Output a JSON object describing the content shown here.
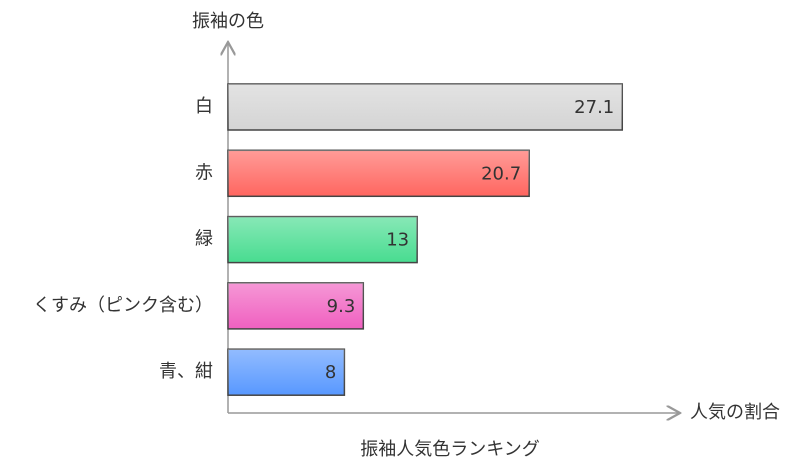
{
  "chart_data": {
    "type": "hbar",
    "title": "振袖人気色ランキング",
    "y_label": "振袖の色",
    "x_label": "人気の割合",
    "categories": [
      "白",
      "赤",
      "緑",
      "くすみ（ピンク含む）",
      "青、紺"
    ],
    "values": [
      27.1,
      20.7,
      13,
      9.3,
      8
    ],
    "colors": [
      "#d4d4d4",
      "#ff6660",
      "#48dc90",
      "#f060c0",
      "#5898ff"
    ],
    "xlim": [
      0,
      31
    ]
  }
}
